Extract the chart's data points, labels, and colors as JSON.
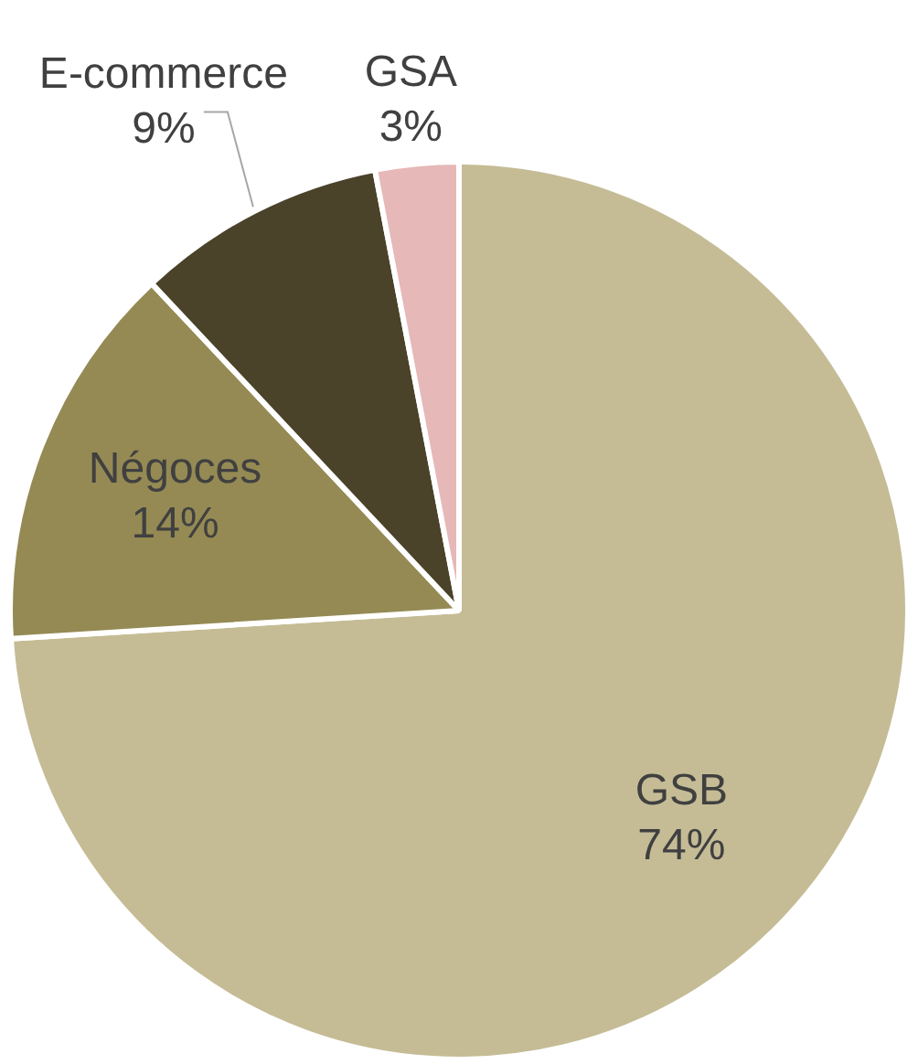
{
  "chart_data": {
    "type": "pie",
    "categories": [
      "GSB",
      "Négoces",
      "E-commerce",
      "GSA"
    ],
    "values": [
      74,
      14,
      9,
      3
    ],
    "value_labels": [
      "74%",
      "14%",
      "9%",
      "3%"
    ],
    "colors": [
      "#c5bc96",
      "#958a54",
      "#4a4229",
      "#e6b8b7"
    ],
    "legend": false
  }
}
